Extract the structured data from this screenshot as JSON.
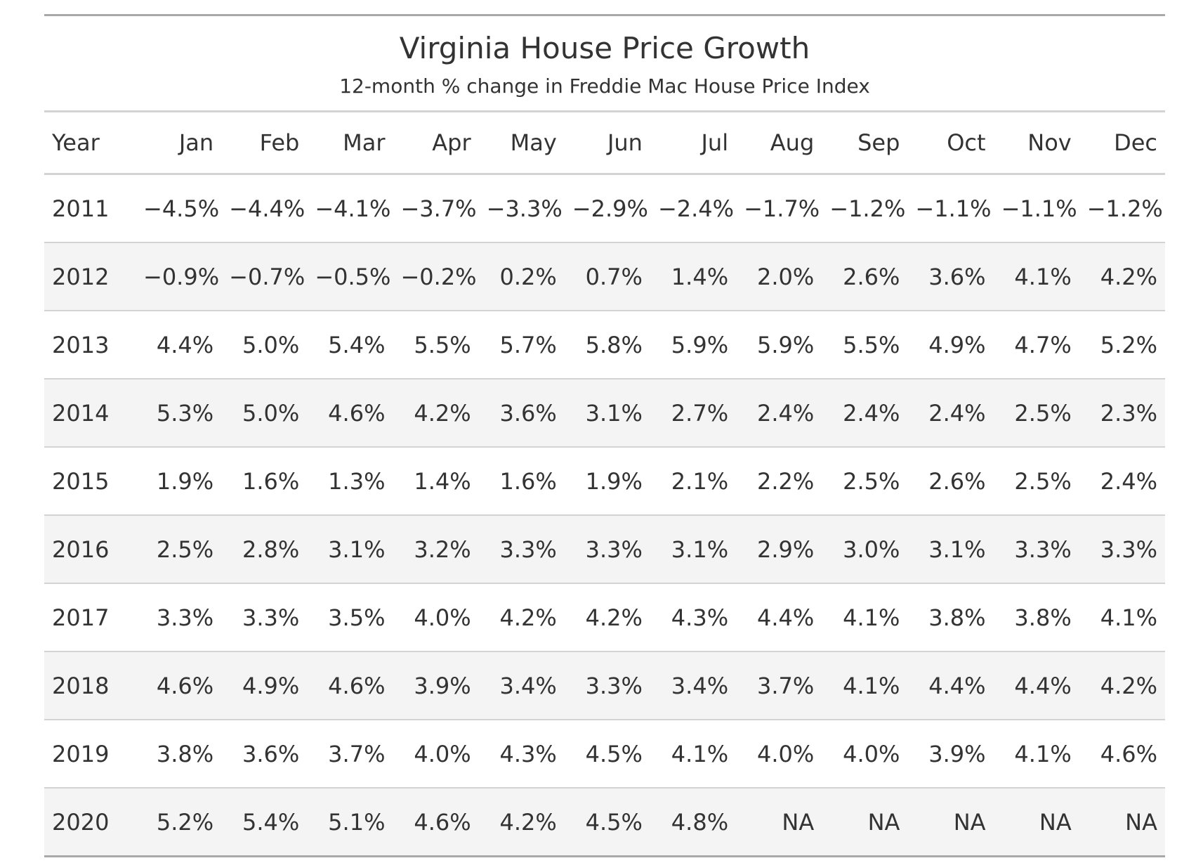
{
  "chart_data": {
    "type": "table",
    "title": "Virginia House Price Growth",
    "subtitle": "12-month % change in Freddie Mac House Price Index",
    "columns": [
      "Year",
      "Jan",
      "Feb",
      "Mar",
      "Apr",
      "May",
      "Jun",
      "Jul",
      "Aug",
      "Sep",
      "Oct",
      "Nov",
      "Dec"
    ],
    "rows": [
      [
        "2011",
        "−4.5%",
        "−4.4%",
        "−4.1%",
        "−3.7%",
        "−3.3%",
        "−2.9%",
        "−2.4%",
        "−1.7%",
        "−1.2%",
        "−1.1%",
        "−1.1%",
        "−1.2%"
      ],
      [
        "2012",
        "−0.9%",
        "−0.7%",
        "−0.5%",
        "−0.2%",
        "0.2%",
        "0.7%",
        "1.4%",
        "2.0%",
        "2.6%",
        "3.6%",
        "4.1%",
        "4.2%"
      ],
      [
        "2013",
        "4.4%",
        "5.0%",
        "5.4%",
        "5.5%",
        "5.7%",
        "5.8%",
        "5.9%",
        "5.9%",
        "5.5%",
        "4.9%",
        "4.7%",
        "5.2%"
      ],
      [
        "2014",
        "5.3%",
        "5.0%",
        "4.6%",
        "4.2%",
        "3.6%",
        "3.1%",
        "2.7%",
        "2.4%",
        "2.4%",
        "2.4%",
        "2.5%",
        "2.3%"
      ],
      [
        "2015",
        "1.9%",
        "1.6%",
        "1.3%",
        "1.4%",
        "1.6%",
        "1.9%",
        "2.1%",
        "2.2%",
        "2.5%",
        "2.6%",
        "2.5%",
        "2.4%"
      ],
      [
        "2016",
        "2.5%",
        "2.8%",
        "3.1%",
        "3.2%",
        "3.3%",
        "3.3%",
        "3.1%",
        "2.9%",
        "3.0%",
        "3.1%",
        "3.3%",
        "3.3%"
      ],
      [
        "2017",
        "3.3%",
        "3.3%",
        "3.5%",
        "4.0%",
        "4.2%",
        "4.2%",
        "4.3%",
        "4.4%",
        "4.1%",
        "3.8%",
        "3.8%",
        "4.1%"
      ],
      [
        "2018",
        "4.6%",
        "4.9%",
        "4.6%",
        "3.9%",
        "3.4%",
        "3.3%",
        "3.4%",
        "3.7%",
        "4.1%",
        "4.4%",
        "4.4%",
        "4.2%"
      ],
      [
        "2019",
        "3.8%",
        "3.6%",
        "3.7%",
        "4.0%",
        "4.3%",
        "4.5%",
        "4.1%",
        "4.0%",
        "4.0%",
        "3.9%",
        "4.1%",
        "4.6%"
      ],
      [
        "2020",
        "5.2%",
        "5.4%",
        "5.1%",
        "4.6%",
        "4.2%",
        "4.5%",
        "4.8%",
        "NA",
        "NA",
        "NA",
        "NA",
        "NA"
      ]
    ],
    "colors": {
      "text": "#333333",
      "stripe": "#f4f4f4",
      "rule": "#d3d3d3",
      "outer_rule": "#a8a8a8"
    }
  }
}
